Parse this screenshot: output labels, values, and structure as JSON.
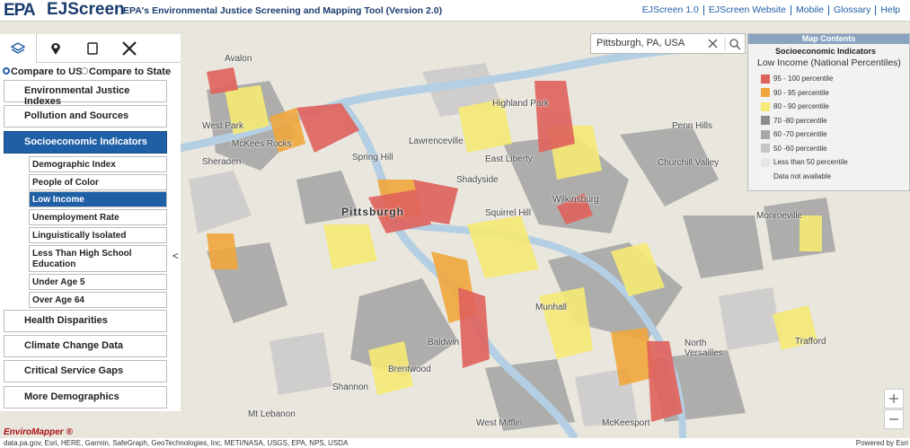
{
  "header": {
    "logo": "EPA",
    "app_name": "EJScreen",
    "title": "EPA's Environmental Justice Screening and Mapping Tool (Version 2.0)",
    "links": [
      "EJScreen 1.0",
      "EJScreen Website",
      "Mobile",
      "Glossary",
      "Help"
    ]
  },
  "sidebar": {
    "compare_options": [
      "Compare to US",
      "Compare to State"
    ],
    "menu_top": [
      "Environmental Justice Indexes",
      "Pollution and Sources",
      "Socioeconomic Indicators"
    ],
    "submenu": [
      "Demographic Index",
      "People of Color",
      "Low Income",
      "Unemployment Rate",
      "Linguistically Isolated",
      "Less Than High School Education",
      "Under Age 5",
      "Over Age 64"
    ],
    "menu_bottom": [
      "Health Disparities",
      "Climate Change Data",
      "Critical Service Gaps",
      "More Demographics"
    ],
    "collapse": "<"
  },
  "search": {
    "value": "Pittsburgh, PA, USA"
  },
  "map_contents": {
    "title": "Map Contents",
    "layer": "Socioeconomic Indicators",
    "subtitle": "Low Income (National Percentiles)",
    "legend": [
      {
        "label": "95 - 100 percentile",
        "color": "#e0625c"
      },
      {
        "label": "90 - 95 percentile",
        "color": "#f0a63c"
      },
      {
        "label": "80 - 90 percentile",
        "color": "#f6ea74"
      },
      {
        "label": "70 -80 percentile",
        "color": "#8c8c8c"
      },
      {
        "label": "60 -70 percentile",
        "color": "#a8a8a8"
      },
      {
        "label": "50 -60 percentile",
        "color": "#c4c4c4"
      },
      {
        "label": "Less than 50 percentile",
        "color": "#e6e6e6"
      },
      {
        "label": "Data not available",
        "color": "#f4f4f4"
      }
    ]
  },
  "map_labels": [
    "Avalon",
    "West Park",
    "McKees Rocks",
    "Sheraden",
    "Highland Park",
    "Lawrenceville",
    "Spring Hill",
    "East Liberty",
    "Shadyside",
    "Penn Hills",
    "Churchill Valley",
    "Pittsburgh",
    "Squirrel Hill",
    "Wilkinsburg",
    "Monroeville",
    "Munhall",
    "Baldwin",
    "North Versailles",
    "Trafford",
    "Brentwood",
    "Shannon",
    "Mt Lebanon",
    "West Mifflin",
    "McKeesport"
  ],
  "footer": {
    "brand": "EnviroMapper ®",
    "attribution": "data.pa.gov, Esri, HERE, Garmin, SafeGraph, GeoTechnologies, Inc, METI/NASA, USGS, EPA, NPS, USDA",
    "powered": "Powered by Esri"
  }
}
